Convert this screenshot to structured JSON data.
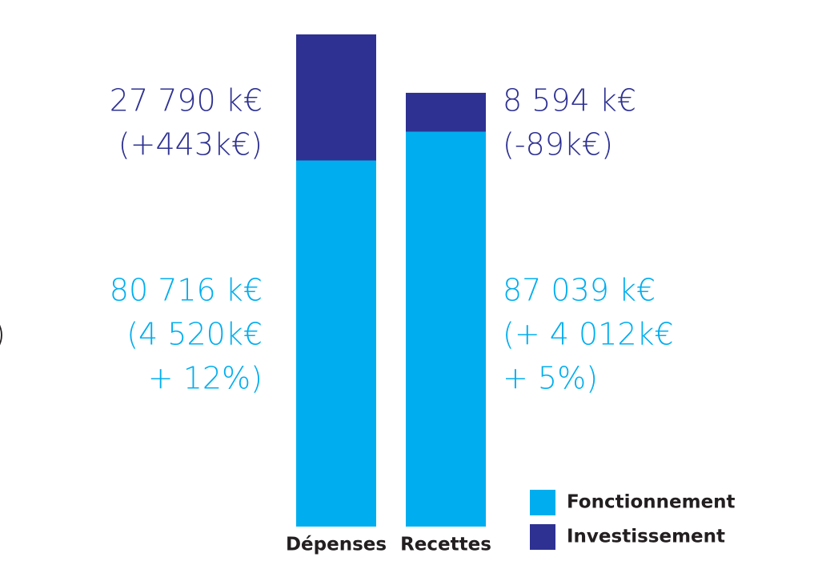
{
  "chart_data": {
    "type": "stacked_bar",
    "categories": [
      "Dépenses",
      "Recettes"
    ],
    "series": [
      {
        "name": "Fonctionnement",
        "color": "#00aeef",
        "values": [
          80716,
          87039
        ],
        "value_labels": [
          "80 716 k€",
          "87 039 k€"
        ],
        "notes": [
          [
            "(4 520k€",
            "+ 12%)"
          ],
          [
            "(+ 4 012k€",
            "+ 5%)"
          ]
        ]
      },
      {
        "name": "Investissement",
        "color": "#2e3192",
        "values": [
          27790,
          8594
        ],
        "value_labels": [
          "27 790 k€",
          "8 594 k€"
        ],
        "notes": [
          [
            "(+443k€)"
          ],
          [
            "(-89k€)"
          ]
        ]
      }
    ],
    "edge_fragment": ")"
  }
}
